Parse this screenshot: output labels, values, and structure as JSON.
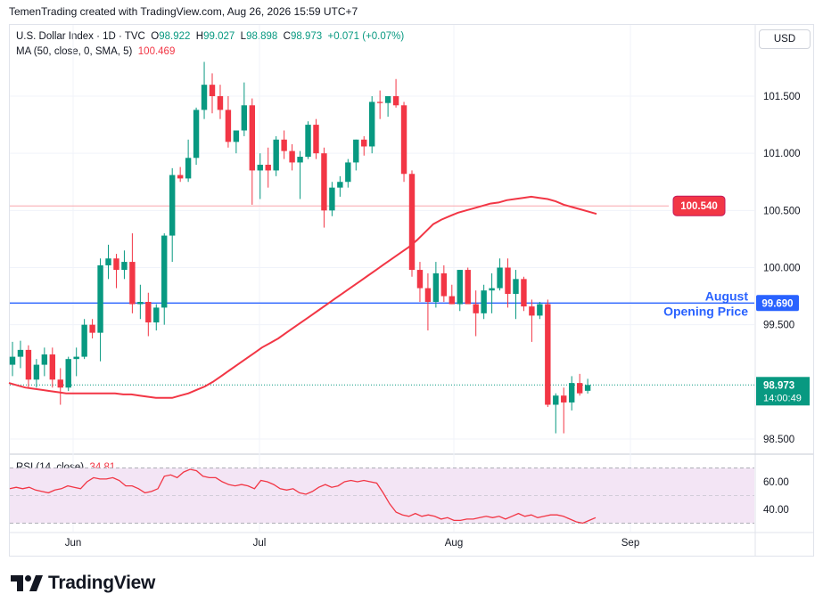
{
  "header": {
    "attribution": "TemenTrading created with TradingView.com, Aug 26, 2026 15:59 UTC+7"
  },
  "legend": {
    "symbol": "U.S. Dollar Index · 1D · TVC",
    "open_label": "O",
    "open": "98.922",
    "high_label": "H",
    "high": "99.027",
    "low_label": "L",
    "low": "98.898",
    "close_label": "C",
    "close": "98.973",
    "change": "+0.071 (+0.07%)",
    "ma_label": "MA (50, close, 0, SMA, 5)",
    "ma_value": "100.469",
    "rsi_label": "RSI (14, close)",
    "rsi_value": "34.81"
  },
  "currency_button": "USD",
  "brand": "TradingView",
  "colors": {
    "up": "#089981",
    "down": "#f23645",
    "ma": "#f23645",
    "hline": "#2962ff",
    "rsi_band": "#f3e5f5",
    "annotation": "#2962ff"
  },
  "chart_data": [
    {
      "type": "candlestick",
      "price_axis": {
        "ticks": [
          "101.500",
          "101.000",
          "100.500",
          "100.000",
          "99.500",
          "98.500"
        ],
        "range": [
          98.5,
          101.8
        ]
      },
      "time_axis": {
        "labels": [
          "Jun",
          "Jul",
          "Aug",
          "Sep"
        ]
      },
      "candles": [
        {
          "o": 99.15,
          "h": 99.35,
          "l": 99.05,
          "c": 99.22
        },
        {
          "o": 99.22,
          "h": 99.36,
          "l": 99.12,
          "c": 99.28
        },
        {
          "o": 99.28,
          "h": 99.32,
          "l": 98.95,
          "c": 99.02
        },
        {
          "o": 99.02,
          "h": 99.2,
          "l": 98.95,
          "c": 99.15
        },
        {
          "o": 99.15,
          "h": 99.3,
          "l": 99.05,
          "c": 99.24
        },
        {
          "o": 99.24,
          "h": 99.3,
          "l": 98.95,
          "c": 99.02
        },
        {
          "o": 99.02,
          "h": 99.12,
          "l": 98.8,
          "c": 98.95
        },
        {
          "o": 98.95,
          "h": 99.22,
          "l": 98.92,
          "c": 99.2
        },
        {
          "o": 99.2,
          "h": 99.3,
          "l": 99.05,
          "c": 99.22
        },
        {
          "o": 99.22,
          "h": 99.55,
          "l": 99.2,
          "c": 99.5
        },
        {
          "o": 99.5,
          "h": 99.55,
          "l": 99.38,
          "c": 99.43
        },
        {
          "o": 99.43,
          "h": 100.08,
          "l": 99.18,
          "c": 100.02
        },
        {
          "o": 100.02,
          "h": 100.2,
          "l": 99.9,
          "c": 100.08
        },
        {
          "o": 100.08,
          "h": 100.12,
          "l": 99.82,
          "c": 99.98
        },
        {
          "o": 99.98,
          "h": 100.15,
          "l": 99.9,
          "c": 100.05
        },
        {
          "o": 100.05,
          "h": 100.3,
          "l": 99.6,
          "c": 99.68
        },
        {
          "o": 99.68,
          "h": 99.85,
          "l": 99.55,
          "c": 99.7
        },
        {
          "o": 99.7,
          "h": 99.78,
          "l": 99.4,
          "c": 99.52
        },
        {
          "o": 99.52,
          "h": 99.68,
          "l": 99.45,
          "c": 99.65
        },
        {
          "o": 99.65,
          "h": 100.3,
          "l": 99.5,
          "c": 100.28
        },
        {
          "o": 100.28,
          "h": 100.87,
          "l": 100.05,
          "c": 100.81
        },
        {
          "o": 100.81,
          "h": 100.88,
          "l": 100.75,
          "c": 100.78
        },
        {
          "o": 100.78,
          "h": 101.12,
          "l": 100.75,
          "c": 100.96
        },
        {
          "o": 100.96,
          "h": 101.4,
          "l": 100.9,
          "c": 101.38
        },
        {
          "o": 101.38,
          "h": 101.8,
          "l": 101.3,
          "c": 101.6
        },
        {
          "o": 101.6,
          "h": 101.7,
          "l": 101.35,
          "c": 101.5
        },
        {
          "o": 101.5,
          "h": 101.6,
          "l": 101.3,
          "c": 101.38
        },
        {
          "o": 101.38,
          "h": 101.5,
          "l": 101.05,
          "c": 101.1
        },
        {
          "o": 101.1,
          "h": 101.2,
          "l": 101.0,
          "c": 101.2
        },
        {
          "o": 101.2,
          "h": 101.62,
          "l": 101.15,
          "c": 101.42
        },
        {
          "o": 101.42,
          "h": 101.48,
          "l": 100.55,
          "c": 100.85
        },
        {
          "o": 100.85,
          "h": 101.0,
          "l": 100.6,
          "c": 100.9
        },
        {
          "o": 100.9,
          "h": 101.05,
          "l": 100.7,
          "c": 100.85
        },
        {
          "o": 100.85,
          "h": 101.15,
          "l": 100.8,
          "c": 101.12
        },
        {
          "o": 101.12,
          "h": 101.2,
          "l": 100.95,
          "c": 101.02
        },
        {
          "o": 101.02,
          "h": 101.08,
          "l": 100.85,
          "c": 100.92
        },
        {
          "o": 100.92,
          "h": 101.02,
          "l": 100.6,
          "c": 100.97
        },
        {
          "o": 100.97,
          "h": 101.28,
          "l": 100.95,
          "c": 101.25
        },
        {
          "o": 101.25,
          "h": 101.3,
          "l": 100.95,
          "c": 101.0
        },
        {
          "o": 101.0,
          "h": 101.05,
          "l": 100.35,
          "c": 100.5
        },
        {
          "o": 100.5,
          "h": 100.75,
          "l": 100.45,
          "c": 100.7
        },
        {
          "o": 100.7,
          "h": 100.8,
          "l": 100.62,
          "c": 100.75
        },
        {
          "o": 100.75,
          "h": 100.95,
          "l": 100.7,
          "c": 100.92
        },
        {
          "o": 100.92,
          "h": 101.12,
          "l": 100.85,
          "c": 101.12
        },
        {
          "o": 101.12,
          "h": 101.15,
          "l": 100.98,
          "c": 101.06
        },
        {
          "o": 101.06,
          "h": 101.5,
          "l": 101.0,
          "c": 101.45
        },
        {
          "o": 101.45,
          "h": 101.55,
          "l": 101.3,
          "c": 101.44
        },
        {
          "o": 101.44,
          "h": 101.5,
          "l": 101.32,
          "c": 101.5
        },
        {
          "o": 101.5,
          "h": 101.65,
          "l": 101.4,
          "c": 101.42
        },
        {
          "o": 101.42,
          "h": 101.45,
          "l": 100.75,
          "c": 100.82
        },
        {
          "o": 100.82,
          "h": 100.85,
          "l": 99.92,
          "c": 99.98
        },
        {
          "o": 99.98,
          "h": 100.05,
          "l": 99.7,
          "c": 99.82
        },
        {
          "o": 99.82,
          "h": 99.95,
          "l": 99.45,
          "c": 99.7
        },
        {
          "o": 99.7,
          "h": 100.05,
          "l": 99.65,
          "c": 99.95
        },
        {
          "o": 99.95,
          "h": 100.02,
          "l": 99.7,
          "c": 99.75
        },
        {
          "o": 99.75,
          "h": 99.85,
          "l": 99.68,
          "c": 99.68
        },
        {
          "o": 99.68,
          "h": 99.98,
          "l": 99.62,
          "c": 99.98
        },
        {
          "o": 99.98,
          "h": 100.0,
          "l": 99.7,
          "c": 99.68
        },
        {
          "o": 99.68,
          "h": 99.8,
          "l": 99.4,
          "c": 99.6
        },
        {
          "o": 99.6,
          "h": 99.85,
          "l": 99.55,
          "c": 99.8
        },
        {
          "o": 99.8,
          "h": 99.95,
          "l": 99.6,
          "c": 99.82
        },
        {
          "o": 99.82,
          "h": 100.08,
          "l": 99.8,
          "c": 100.0
        },
        {
          "o": 100.0,
          "h": 100.08,
          "l": 99.65,
          "c": 99.77
        },
        {
          "o": 99.77,
          "h": 99.98,
          "l": 99.55,
          "c": 99.9
        },
        {
          "o": 99.9,
          "h": 99.92,
          "l": 99.62,
          "c": 99.66
        },
        {
          "o": 99.66,
          "h": 99.72,
          "l": 99.35,
          "c": 99.58
        },
        {
          "o": 99.58,
          "h": 99.7,
          "l": 99.55,
          "c": 99.68
        },
        {
          "o": 99.68,
          "h": 99.72,
          "l": 98.78,
          "c": 98.8
        },
        {
          "o": 98.8,
          "h": 98.9,
          "l": 98.55,
          "c": 98.88
        },
        {
          "o": 98.88,
          "h": 98.95,
          "l": 98.55,
          "c": 98.82
        },
        {
          "o": 98.82,
          "h": 99.05,
          "l": 98.75,
          "c": 98.99
        },
        {
          "o": 98.99,
          "h": 99.07,
          "l": 98.88,
          "c": 98.9
        },
        {
          "o": 98.922,
          "h": 99.027,
          "l": 98.898,
          "c": 98.973
        }
      ],
      "ma": {
        "name": "MA (50, close, 0, SMA, 5)",
        "values": [
          98.99,
          98.97,
          98.95,
          98.94,
          98.93,
          98.92,
          98.91,
          98.9,
          98.9,
          98.9,
          98.9,
          98.9,
          98.9,
          98.9,
          98.89,
          98.89,
          98.88,
          98.87,
          98.86,
          98.86,
          98.86,
          98.88,
          98.9,
          98.93,
          98.96,
          99.0,
          99.05,
          99.1,
          99.15,
          99.2,
          99.25,
          99.3,
          99.34,
          99.38,
          99.43,
          99.48,
          99.53,
          99.58,
          99.63,
          99.68,
          99.73,
          99.78,
          99.83,
          99.88,
          99.93,
          99.98,
          100.03,
          100.08,
          100.13,
          100.18,
          100.24,
          100.31,
          100.38,
          100.42,
          100.45,
          100.48,
          100.5,
          100.52,
          100.54,
          100.56,
          100.57,
          100.59,
          100.6,
          100.61,
          100.62,
          100.61,
          100.6,
          100.58,
          100.55,
          100.53,
          100.51,
          100.49,
          100.47
        ]
      },
      "horizontal_lines": [
        {
          "value": 100.54,
          "label": "100.540"
        },
        {
          "value": 99.69,
          "label": "99.690",
          "annotation": [
            "August",
            "Opening Price"
          ]
        }
      ],
      "last_price": {
        "value": 98.973,
        "label": "98.973",
        "countdown": "14:00:49"
      }
    },
    {
      "type": "line",
      "name": "RSI (14, close)",
      "y_ticks": [
        "60.00",
        "40.00"
      ],
      "ylim": [
        28,
        72
      ],
      "band": [
        30,
        70
      ],
      "values": [
        55,
        56,
        55,
        56,
        54,
        53,
        52,
        54,
        55,
        57,
        56,
        55,
        60,
        63,
        62,
        62,
        63,
        61,
        57,
        57,
        55,
        52,
        53,
        55,
        64,
        65,
        63,
        67,
        69,
        68,
        64,
        63,
        63,
        60,
        58,
        57,
        58,
        57,
        55,
        61,
        60,
        58,
        55,
        54,
        55,
        52,
        51,
        53,
        56,
        58,
        56,
        57,
        60,
        61,
        60,
        61,
        60,
        59,
        52,
        44,
        38,
        36,
        35,
        37,
        35,
        36,
        35,
        33,
        34,
        32,
        32,
        33,
        33,
        34,
        35,
        34,
        35,
        33,
        35,
        37,
        35,
        36,
        34,
        35,
        36,
        36,
        35,
        33,
        31,
        30,
        32,
        34
      ]
    }
  ]
}
